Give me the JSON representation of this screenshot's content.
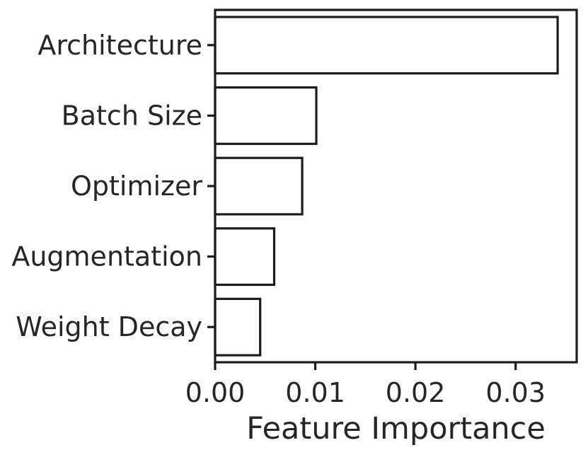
{
  "figure": {
    "background": "#ffffff"
  },
  "chart_data": {
    "type": "bar",
    "orientation": "horizontal",
    "xlabel": "Feature Importance",
    "ylabel": "",
    "title": "",
    "categories": [
      "Architecture",
      "Batch Size",
      "Optimizer",
      "Augmentation",
      "Weight Decay"
    ],
    "values": [
      0.0342,
      0.0101,
      0.0087,
      0.0059,
      0.0045
    ],
    "xlim": [
      0,
      0.0361
    ],
    "xtick_values": [
      0,
      0.01,
      0.02,
      0.03
    ],
    "xtick_labels": [
      "0.00",
      "0.01",
      "0.02",
      "0.03"
    ],
    "bar_height_fraction": 0.8,
    "grid": false,
    "legend_position": "none",
    "style": {
      "bar_fill": "#ffffff",
      "bar_edge": "#1c1c1c",
      "spine_color": "#1c1c1c",
      "text_color": "#262626"
    }
  }
}
